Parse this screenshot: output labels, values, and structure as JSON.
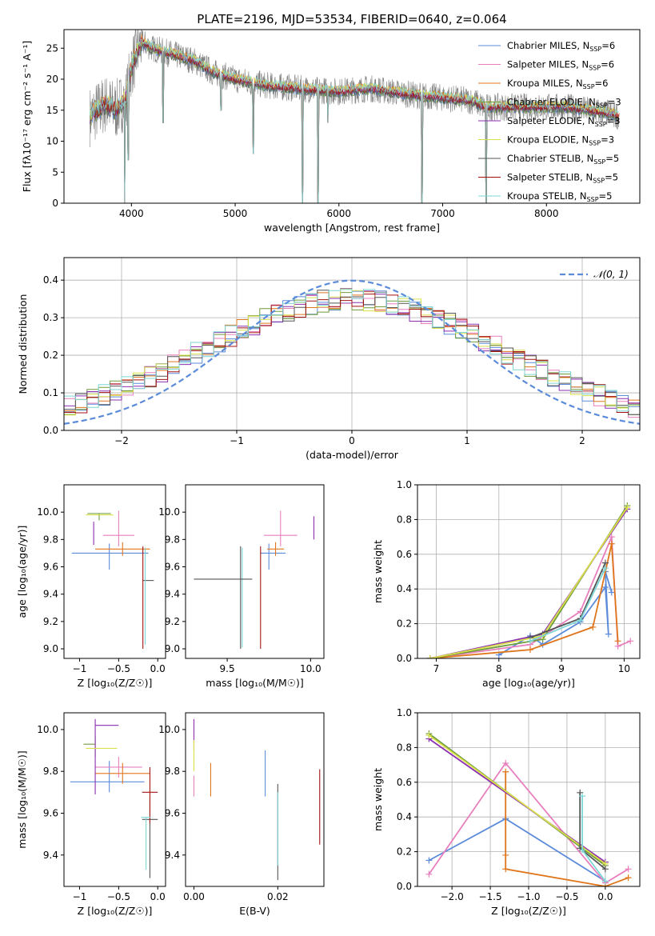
{
  "page_title": "PLATE=2196, MJD=53534, FIBERID=0640, z=0.064",
  "colors": {
    "Chabrier MILES": "#5b8bd9",
    "Salpeter MILES": "#e87fbd",
    "Kroupa MILES": "#e0761c",
    "Chabrier ELODIE": "#6f9b3a",
    "Salpeter ELODIE": "#8b2fb0",
    "Kroupa ELODIE": "#d9e04a",
    "Chabrier STELIB": "#555555",
    "Salpeter STELIB": "#a31212",
    "Kroupa STELIB": "#7ed6d6",
    "spectrum": "#808080",
    "normal": "#5b8bd9",
    "grid": "#b0b0b0"
  },
  "chart_data": [
    {
      "id": "spectrum",
      "type": "line",
      "title": "PLATE=2196, MJD=53534, FIBERID=0640, z=0.064",
      "xlabel": "wavelength [Angstrom, rest frame]",
      "ylabel": "Flux [fλ10⁻¹⁷ erg cm⁻² s⁻¹ A⁻¹]",
      "xlim": [
        3350,
        8900
      ],
      "ylim": [
        0,
        28
      ],
      "xticks": [
        4000,
        5000,
        6000,
        7000,
        8000
      ],
      "yticks": [
        0,
        5,
        10,
        15,
        20,
        25
      ],
      "grid": false,
      "legend_position": "top-right",
      "legend": [
        {
          "name": "Chabrier MILES",
          "nssp": "6"
        },
        {
          "name": "Salpeter MILES",
          "nssp": "6"
        },
        {
          "name": "Kroupa MILES",
          "nssp": "6"
        },
        {
          "name": "Chabrier ELODIE",
          "nssp": "3"
        },
        {
          "name": "Salpeter ELODIE",
          "nssp": "3"
        },
        {
          "name": "Kroupa ELODIE",
          "nssp": "3"
        },
        {
          "name": "Chabrier STELIB",
          "nssp": "5"
        },
        {
          "name": "Salpeter STELIB",
          "nssp": "5"
        },
        {
          "name": "Kroupa STELIB",
          "nssp": "5"
        }
      ],
      "continuum": [
        [
          3600,
          14
        ],
        [
          3750,
          16
        ],
        [
          3850,
          15
        ],
        [
          3950,
          17
        ],
        [
          4000,
          22
        ],
        [
          4050,
          24
        ],
        [
          4100,
          26
        ],
        [
          4200,
          25
        ],
        [
          4400,
          24
        ],
        [
          4600,
          23
        ],
        [
          4800,
          21
        ],
        [
          5000,
          20
        ],
        [
          5300,
          19
        ],
        [
          5600,
          18.5
        ],
        [
          6000,
          18
        ],
        [
          6300,
          18.5
        ],
        [
          6500,
          18
        ],
        [
          6700,
          17.5
        ],
        [
          7000,
          17
        ],
        [
          7300,
          16.5
        ],
        [
          7400,
          15.5
        ],
        [
          7600,
          15.5
        ],
        [
          7800,
          15.5
        ],
        [
          8000,
          15.5
        ],
        [
          8200,
          15.5
        ],
        [
          8400,
          15
        ],
        [
          8600,
          14.5
        ],
        [
          8700,
          14
        ]
      ],
      "absorption_lines": [
        [
          3935,
          0
        ],
        [
          3970,
          7
        ],
        [
          4305,
          13
        ],
        [
          4862,
          15
        ],
        [
          5175,
          8
        ],
        [
          5893,
          13
        ],
        [
          5650,
          0
        ],
        [
          5800,
          0
        ],
        [
          6800,
          0
        ],
        [
          7420,
          0
        ]
      ]
    },
    {
      "id": "residuals",
      "type": "histogram",
      "xlabel": "(data-model)/error",
      "ylabel": "Normed distribution",
      "xlim": [
        -2.5,
        2.5
      ],
      "ylim": [
        0,
        0.46
      ],
      "xticks": [
        -2,
        -1,
        0,
        1,
        2
      ],
      "yticks": [
        0.0,
        0.1,
        0.2,
        0.3,
        0.4
      ],
      "grid": true,
      "legend": "𝒩(0, 1)",
      "legend_position": "top-right",
      "normal": {
        "mean": 0,
        "sigma": 1
      },
      "bin_width": 0.1
    },
    {
      "id": "age_vs_Z",
      "type": "errorbar",
      "xlabel": "Z [log₁₀(Z/Z☉)]",
      "ylabel": "age [log₁₀(age/yr)]",
      "xlim": [
        -1.2,
        0.1
      ],
      "ylim": [
        8.93,
        10.2
      ],
      "xticks": [
        -1.0,
        -0.5,
        0.0
      ],
      "yticks": [
        9.0,
        9.2,
        9.4,
        9.6,
        9.8,
        10.0
      ],
      "points": [
        {
          "model": "Chabrier MILES",
          "x": -0.62,
          "y": 9.7,
          "xerr": [
            0.48,
            0.5
          ],
          "yerr": [
            0.12,
            0.07
          ]
        },
        {
          "model": "Salpeter MILES",
          "x": -0.5,
          "y": 9.83,
          "xerr": [
            0.2,
            0.2
          ],
          "yerr": [
            0.08,
            0.18
          ]
        },
        {
          "model": "Kroupa MILES",
          "x": -0.45,
          "y": 9.73,
          "xerr": [
            0.35,
            0.35
          ],
          "yerr": [
            0.05,
            0.05
          ]
        },
        {
          "model": "Chabrier ELODIE",
          "x": -0.75,
          "y": 9.99,
          "xerr": [
            0.15,
            0.15
          ],
          "yerr": [
            0.05,
            0.0
          ]
        },
        {
          "model": "Salpeter ELODIE",
          "x": -0.82,
          "y": 9.86,
          "xerr": [
            0.0,
            0.0
          ],
          "yerr": [
            0.1,
            0.07
          ]
        },
        {
          "model": "Kroupa ELODIE",
          "x": -0.72,
          "y": 9.98,
          "xerr": [
            0.2,
            0.15
          ],
          "yerr": [
            0.0,
            0.0
          ]
        },
        {
          "model": "Chabrier STELIB",
          "x": -0.12,
          "y": 9.5,
          "xerr": [
            0.07,
            0.07
          ],
          "yerr": [
            0.0,
            0.0
          ]
        },
        {
          "model": "Salpeter STELIB",
          "x": -0.19,
          "y": 9.5,
          "xerr": [
            0.0,
            0.0
          ],
          "yerr": [
            0.5,
            0.25
          ]
        },
        {
          "model": "Kroupa STELIB",
          "x": -0.16,
          "y": 9.51,
          "xerr": [
            0.0,
            0.0
          ],
          "yerr": [
            0.48,
            0.23
          ]
        }
      ]
    },
    {
      "id": "age_vs_mass",
      "type": "errorbar",
      "xlabel": "mass [log₁₀(M/M☉)]",
      "ylabel": "",
      "xlim": [
        9.25,
        10.08
      ],
      "ylim": [
        8.93,
        10.2
      ],
      "xticks": [
        9.5,
        10.0
      ],
      "yticks": [
        9.0,
        9.2,
        9.4,
        9.6,
        9.8,
        10.0
      ],
      "points": [
        {
          "model": "Chabrier MILES",
          "x": 9.75,
          "y": 9.7,
          "xerr": [
            0.05,
            0.1
          ],
          "yerr": [
            0.12,
            0.07
          ]
        },
        {
          "model": "Salpeter MILES",
          "x": 9.82,
          "y": 9.83,
          "xerr": [
            0.1,
            0.1
          ],
          "yerr": [
            0.08,
            0.18
          ]
        },
        {
          "model": "Kroupa MILES",
          "x": 9.79,
          "y": 9.73,
          "xerr": [
            0.05,
            0.05
          ],
          "yerr": [
            0.05,
            0.05
          ]
        },
        {
          "model": "Salpeter ELODIE",
          "x": 10.02,
          "y": 9.9,
          "xerr": [
            0.0,
            0.0
          ],
          "yerr": [
            0.1,
            0.07
          ]
        },
        {
          "model": "Chabrier STELIB",
          "x": 9.58,
          "y": 9.5,
          "xerr": [
            0.0,
            0.0
          ],
          "yerr": [
            0.5,
            0.25
          ]
        },
        {
          "model": "Salpeter STELIB",
          "x": 9.7,
          "y": 9.5,
          "xerr": [
            0.0,
            0.0
          ],
          "yerr": [
            0.5,
            0.25
          ]
        },
        {
          "model": "Kroupa STELIB",
          "x": 9.59,
          "y": 9.51,
          "xerr": [
            0.0,
            0.0
          ],
          "yerr": [
            0.5,
            0.23
          ]
        },
        {
          "model": "Chabrier STELIB",
          "x": 9.45,
          "y": 9.51,
          "xerr": [
            0.15,
            0.2
          ],
          "yerr": [
            0.0,
            0.0
          ]
        }
      ]
    },
    {
      "id": "weight_vs_age",
      "type": "line",
      "xlabel": "age [log₁₀(age/yr)]",
      "ylabel": "mass weight",
      "xlim": [
        6.7,
        10.25
      ],
      "ylim": [
        0,
        1.0
      ],
      "xticks": [
        7,
        8,
        9,
        10
      ],
      "yticks": [
        0.0,
        0.2,
        0.4,
        0.6,
        0.8,
        1.0
      ],
      "grid": true,
      "series": [
        {
          "name": "Chabrier MILES",
          "x": [
            8.0,
            8.5,
            8.7,
            9.3,
            9.7,
            9.75,
            9.7,
            9.8
          ],
          "y": [
            0.02,
            0.13,
            0.08,
            0.21,
            0.41,
            0.14,
            0.5,
            0.38
          ]
        },
        {
          "name": "Salpeter MILES",
          "x": [
            6.9,
            8.5,
            9.3,
            9.8,
            9.9,
            10.1
          ],
          "y": [
            0.0,
            0.08,
            0.27,
            0.7,
            0.07,
            0.1
          ]
        },
        {
          "name": "Kroupa MILES",
          "x": [
            6.9,
            8.5,
            9.5,
            9.8,
            9.9
          ],
          "y": [
            0.0,
            0.05,
            0.18,
            0.66,
            0.1
          ]
        },
        {
          "name": "Chabrier ELODIE",
          "x": [
            6.9,
            8.7,
            10.05
          ],
          "y": [
            0.0,
            0.11,
            0.88
          ]
        },
        {
          "name": "Salpeter ELODIE",
          "x": [
            6.9,
            8.7,
            10.05
          ],
          "y": [
            0.0,
            0.14,
            0.86
          ]
        },
        {
          "name": "Kroupa ELODIE",
          "x": [
            6.9,
            8.7,
            10.05
          ],
          "y": [
            0.0,
            0.13,
            0.87
          ]
        },
        {
          "name": "Chabrier STELIB",
          "x": [
            8.5,
            9.3,
            9.7
          ],
          "y": [
            0.12,
            0.23,
            0.55
          ]
        },
        {
          "name": "Kroupa STELIB",
          "x": [
            8.5,
            9.3,
            9.7
          ],
          "y": [
            0.1,
            0.22,
            0.52
          ]
        }
      ]
    },
    {
      "id": "mass_vs_Z",
      "type": "errorbar",
      "xlabel": "Z [log₁₀(Z/Z☉)]",
      "ylabel": "mass [log₁₀(M/M☉)]",
      "xlim": [
        -1.2,
        0.1
      ],
      "ylim": [
        9.25,
        10.08
      ],
      "xticks": [
        -1.0,
        -0.5,
        0.0
      ],
      "yticks": [
        9.4,
        9.6,
        9.8,
        10.0
      ],
      "points": [
        {
          "model": "Chabrier MILES",
          "x": -0.62,
          "y": 9.75,
          "xerr": [
            0.5,
            0.45
          ],
          "yerr": [
            0.05,
            0.1
          ]
        },
        {
          "model": "Salpeter MILES",
          "x": -0.5,
          "y": 9.82,
          "xerr": [
            0.3,
            0.3
          ],
          "yerr": [
            0.05,
            0.05
          ]
        },
        {
          "model": "Kroupa MILES",
          "x": -0.45,
          "y": 9.79,
          "xerr": [
            0.35,
            0.35
          ],
          "yerr": [
            0.05,
            0.05
          ]
        },
        {
          "model": "Chabrier ELODIE",
          "x": -0.8,
          "y": 9.93,
          "xerr": [
            0.15,
            0.0
          ],
          "yerr": [
            0.06,
            0.04
          ]
        },
        {
          "model": "Salpeter ELODIE",
          "x": -0.8,
          "y": 10.02,
          "xerr": [
            0.0,
            0.3
          ],
          "yerr": [
            0.33,
            0.03
          ]
        },
        {
          "model": "Kroupa ELODIE",
          "x": -0.72,
          "y": 9.91,
          "xerr": [
            0.2,
            0.2
          ],
          "yerr": [
            0.0,
            0.0
          ]
        },
        {
          "model": "Chabrier STELIB",
          "x": -0.1,
          "y": 9.57,
          "xerr": [
            0.1,
            0.1
          ],
          "yerr": [
            0.28,
            0.1
          ]
        },
        {
          "model": "Salpeter STELIB",
          "x": -0.1,
          "y": 9.7,
          "xerr": [
            0.1,
            0.1
          ],
          "yerr": [
            0.15,
            0.12
          ]
        },
        {
          "model": "Kroupa STELIB",
          "x": -0.15,
          "y": 9.58,
          "xerr": [
            0.06,
            0.06
          ],
          "yerr": [
            0.25,
            0.0
          ]
        }
      ]
    },
    {
      "id": "mass_vs_EBV",
      "type": "errorbar",
      "xlabel": "E(B-V)",
      "ylabel": "",
      "xlim": [
        -0.002,
        0.031
      ],
      "ylim": [
        9.25,
        10.08
      ],
      "xticks": [
        0.0,
        0.02
      ],
      "yticks": [
        9.4,
        9.6,
        9.8,
        10.0
      ],
      "points": [
        {
          "model": "Salpeter ELODIE",
          "x": 0.0,
          "y": 9.95,
          "xerr": [
            0,
            0
          ],
          "yerr": [
            0.05,
            0.1
          ]
        },
        {
          "model": "Kroupa ELODIE",
          "x": 0.0,
          "y": 9.85,
          "xerr": [
            0,
            0
          ],
          "yerr": [
            0.05,
            0.1
          ]
        },
        {
          "model": "Salpeter MILES",
          "x": 0.0,
          "y": 9.78,
          "xerr": [
            0,
            0
          ],
          "yerr": [
            0.1,
            0.0
          ]
        },
        {
          "model": "Kroupa MILES",
          "x": 0.004,
          "y": 9.78,
          "xerr": [
            0,
            0
          ],
          "yerr": [
            0.1,
            0.06
          ]
        },
        {
          "model": "Chabrier MILES",
          "x": 0.017,
          "y": 9.78,
          "xerr": [
            0,
            0
          ],
          "yerr": [
            0.1,
            0.12
          ]
        },
        {
          "model": "Chabrier STELIB",
          "x": 0.02,
          "y": 9.5,
          "xerr": [
            0,
            0
          ],
          "yerr": [
            0.22,
            0.24
          ]
        },
        {
          "model": "Kroupa STELIB",
          "x": 0.02,
          "y": 9.6,
          "xerr": [
            0,
            0
          ],
          "yerr": [
            0.25,
            0.1
          ]
        },
        {
          "model": "Salpeter STELIB",
          "x": 0.03,
          "y": 9.63,
          "xerr": [
            0,
            0
          ],
          "yerr": [
            0.18,
            0.18
          ]
        }
      ]
    },
    {
      "id": "weight_vs_Z",
      "type": "line",
      "xlabel": "Z [log₁₀(Z/Z☉)]",
      "ylabel": "mass weight",
      "xlim": [
        -2.45,
        0.45
      ],
      "ylim": [
        0,
        1.0
      ],
      "xticks": [
        -2.0,
        -1.5,
        -1.0,
        -0.5,
        0.0
      ],
      "yticks": [
        0.0,
        0.2,
        0.4,
        0.6,
        0.8,
        1.0
      ],
      "grid": true,
      "series": [
        {
          "name": "Chabrier MILES",
          "x": [
            -2.3,
            -1.3,
            0.0
          ],
          "y": [
            0.15,
            0.39,
            0.03
          ]
        },
        {
          "name": "Salpeter MILES",
          "x": [
            -2.3,
            -1.3,
            0.0,
            0.3
          ],
          "y": [
            0.07,
            0.71,
            0.02,
            0.1
          ]
        },
        {
          "name": "Kroupa MILES",
          "x": [
            -1.3,
            -1.3,
            -1.3,
            0.0,
            0.3
          ],
          "y": [
            0.66,
            0.18,
            0.1,
            0.0,
            0.05
          ]
        },
        {
          "name": "Chabrier ELODIE",
          "x": [
            -2.3,
            0.0
          ],
          "y": [
            0.88,
            0.12
          ]
        },
        {
          "name": "Salpeter ELODIE",
          "x": [
            -2.3,
            0.0
          ],
          "y": [
            0.85,
            0.14
          ]
        },
        {
          "name": "Kroupa ELODIE",
          "x": [
            -2.3,
            0.0
          ],
          "y": [
            0.87,
            0.13
          ]
        },
        {
          "name": "Chabrier STELIB",
          "x": [
            -0.33,
            -0.33,
            0.0
          ],
          "y": [
            0.54,
            0.22,
            0.1
          ]
        },
        {
          "name": "Kroupa STELIB",
          "x": [
            -0.3,
            -0.3,
            0.0
          ],
          "y": [
            0.52,
            0.21,
            0.03
          ]
        }
      ]
    }
  ]
}
